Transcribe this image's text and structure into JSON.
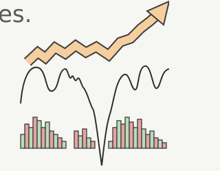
{
  "caption": "es."
}
